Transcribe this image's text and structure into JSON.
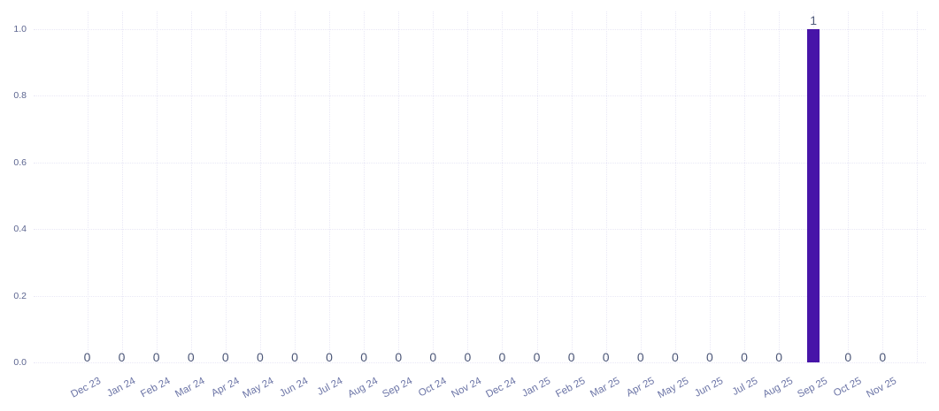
{
  "chart_data": {
    "type": "bar",
    "title": "",
    "xlabel": "",
    "ylabel": "",
    "legend": "none",
    "categories": [
      "Dec 23",
      "Jan 24",
      "Feb 24",
      "Mar 24",
      "Apr 24",
      "May 24",
      "Jun 24",
      "Jul 24",
      "Aug 24",
      "Sep 24",
      "Oct 24",
      "Nov 24",
      "Dec 24",
      "Jan 25",
      "Feb 25",
      "Mar 25",
      "Apr 25",
      "May 25",
      "Jun 25",
      "Jul 25",
      "Aug 25",
      "Sep 25",
      "Oct 25",
      "Nov 25"
    ],
    "values": [
      0,
      0,
      0,
      0,
      0,
      0,
      0,
      0,
      0,
      0,
      0,
      0,
      0,
      0,
      0,
      0,
      0,
      0,
      0,
      0,
      0,
      1,
      0,
      0
    ],
    "bar_labels": [
      "0",
      "0",
      "0",
      "0",
      "0",
      "0",
      "0",
      "0",
      "0",
      "0",
      "0",
      "0",
      "0",
      "0",
      "0",
      "0",
      "0",
      "0",
      "0",
      "0",
      "0",
      "1",
      "0",
      "0"
    ],
    "ylim": [
      0,
      1
    ],
    "yticks": [
      0,
      0.2,
      0.4,
      0.6,
      0.8,
      1
    ],
    "ytick_labels": [
      "0.0",
      "0.2",
      "0.4",
      "0.6",
      "0.8",
      "1.0"
    ],
    "grid": {
      "horizontal": true,
      "vertical": true,
      "style": "dotted"
    },
    "x_label_rotation_deg": -28
  },
  "colors": {
    "bar": "#4714a8",
    "value_label": "#4d5878",
    "y_tick_label": "#5c6590",
    "x_tick_label": "#6b74a6",
    "gridline": "#e9e8f6",
    "background": "#ffffff"
  }
}
